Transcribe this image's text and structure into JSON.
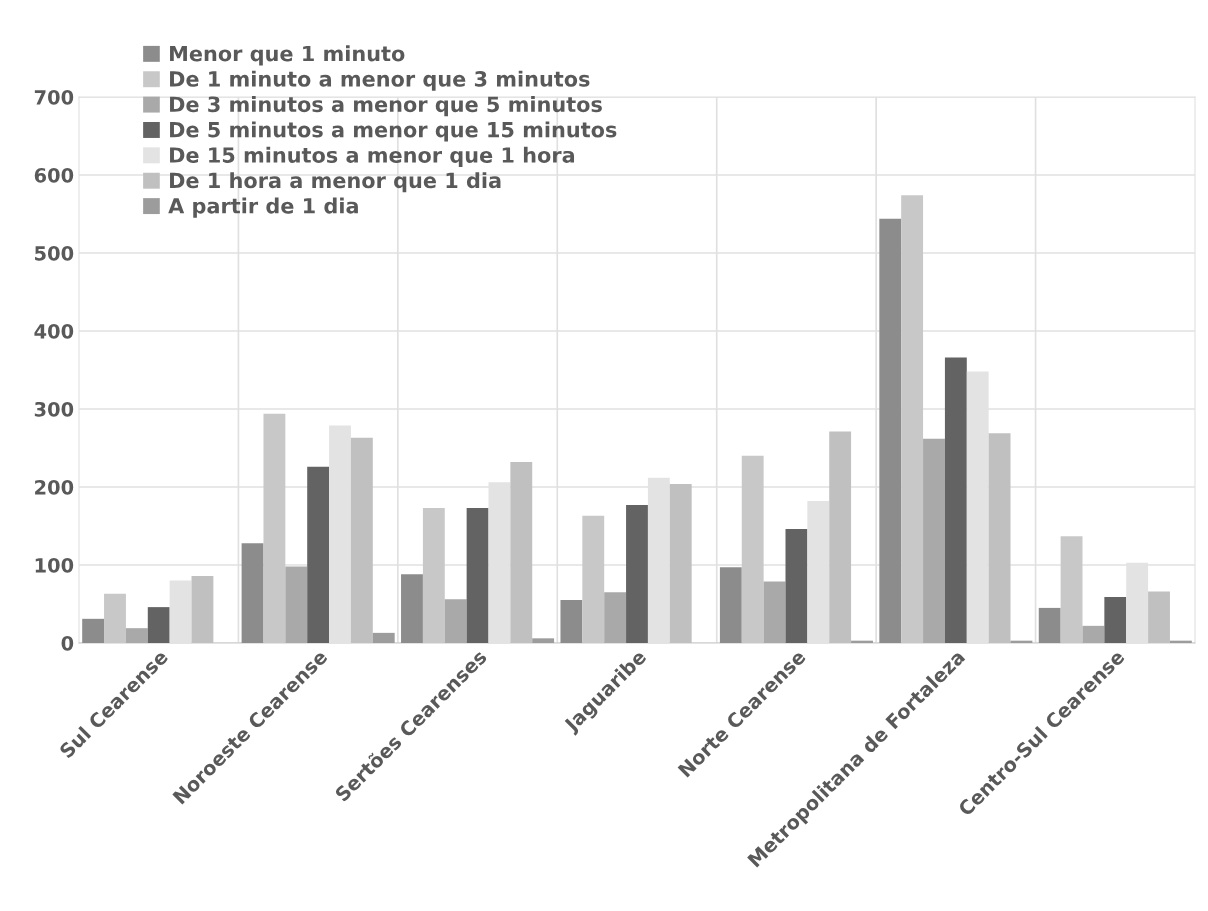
{
  "chart_data": {
    "type": "bar",
    "categories": [
      "Sul Cearense",
      "Noroeste Cearense",
      "Sertões Cearenses",
      "Jaguaribe",
      "Norte Cearense",
      "Metropolitana de Fortaleza",
      "Centro-Sul Cearense"
    ],
    "series": [
      {
        "name": "Menor que 1 minuto",
        "color": "#8c8c8c",
        "values": [
          31,
          128,
          88,
          55,
          97,
          544,
          45
        ]
      },
      {
        "name": "De 1 minuto a menor que 3 minutos",
        "color": "#c8c8c8",
        "values": [
          63,
          294,
          173,
          163,
          240,
          574,
          137
        ]
      },
      {
        "name": "De 3 minutos a menor que 5 minutos",
        "color": "#a9a9a9",
        "values": [
          19,
          98,
          56,
          65,
          79,
          262,
          22
        ]
      },
      {
        "name": "De 5 minutos a menor que 15 minutos",
        "color": "#636363",
        "values": [
          46,
          226,
          173,
          177,
          146,
          366,
          59
        ]
      },
      {
        "name": "De 15 minutos a menor que 1 hora",
        "color": "#e3e3e3",
        "values": [
          80,
          279,
          206,
          212,
          182,
          348,
          103
        ]
      },
      {
        "name": "De 1 hora a menor que 1 dia",
        "color": "#c0c0c0",
        "values": [
          86,
          263,
          232,
          204,
          271,
          269,
          66
        ]
      },
      {
        "name": "A partir de 1 dia",
        "color": "#9c9c9c",
        "values": [
          0,
          13,
          6,
          0,
          3,
          3,
          3
        ]
      }
    ],
    "ylim": [
      0,
      700
    ],
    "yticks": [
      0,
      100,
      200,
      300,
      400,
      500,
      600,
      700
    ],
    "grid": true,
    "legend": "top left"
  }
}
